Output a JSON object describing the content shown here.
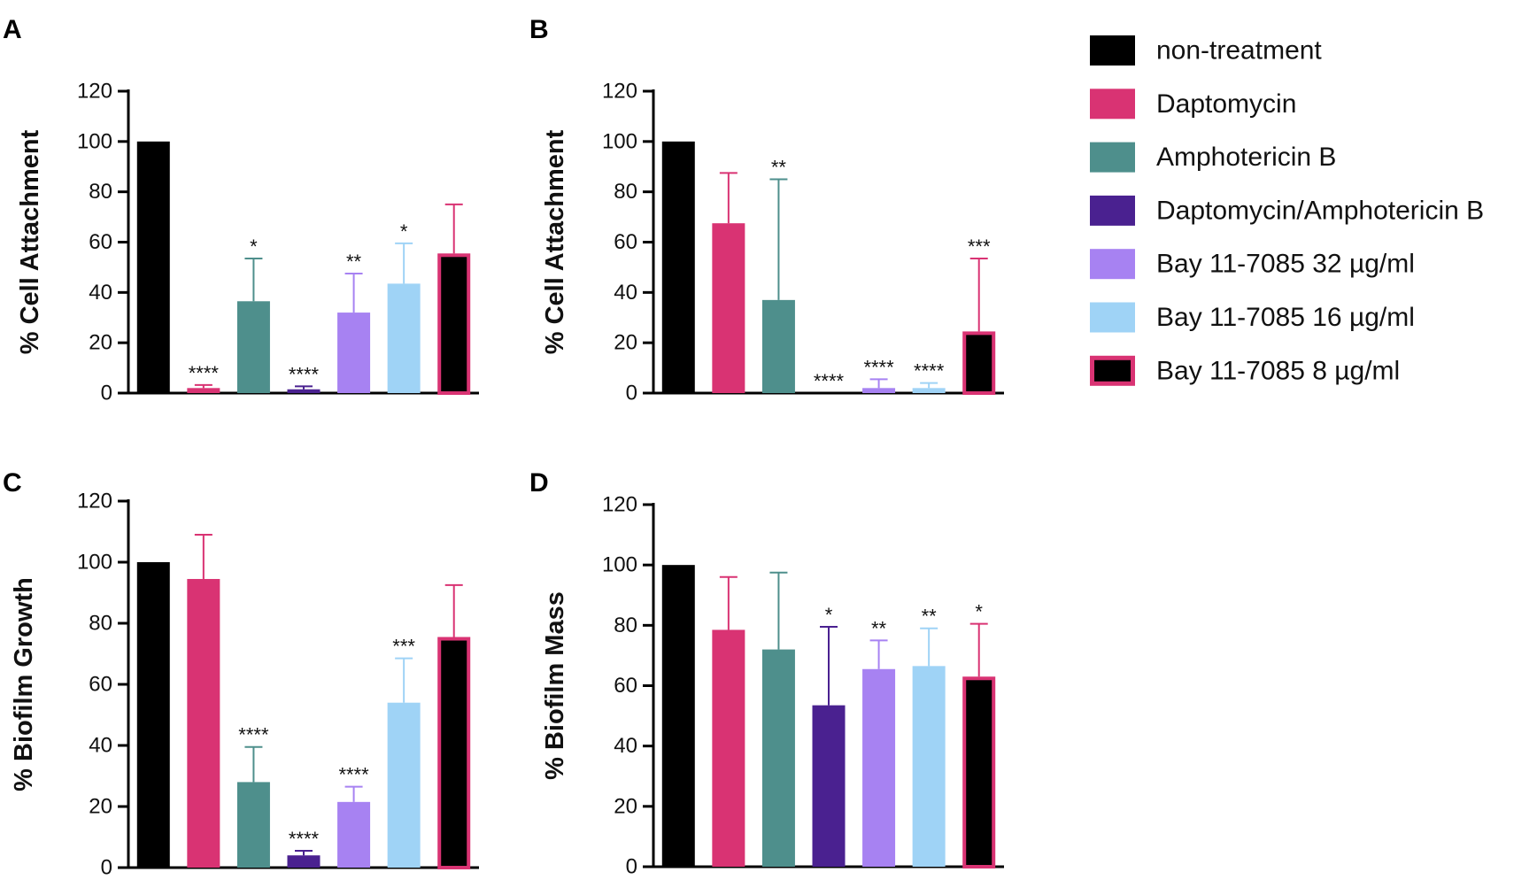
{
  "legend": [
    {
      "label": "non-treatment",
      "key": "nt",
      "icon": "legend-swatch-black"
    },
    {
      "label": "Daptomycin",
      "key": "dap",
      "icon": "legend-swatch-pink"
    },
    {
      "label": "Amphotericin B",
      "key": "amb",
      "icon": "legend-swatch-teal"
    },
    {
      "label": "Daptomycin/Amphotericin B",
      "key": "combo",
      "icon": "legend-swatch-indigo"
    },
    {
      "label": "Bay 11-7085 32 µg/ml",
      "key": "bay32",
      "icon": "legend-swatch-lavender"
    },
    {
      "label": "Bay 11-7085 16 µg/ml",
      "key": "bay16",
      "icon": "legend-swatch-lightblue"
    },
    {
      "label": "Bay 11-7085 8 µg/ml",
      "key": "bay8",
      "icon": "legend-swatch-black-pink-border"
    }
  ],
  "colors": {
    "nt": "#000000",
    "dap": "#d93373",
    "amb": "#4e8f8c",
    "combo": "#4a2190",
    "bay32": "#a782f2",
    "bay16": "#9fd3f6",
    "bay8_fill": "#000000",
    "bay8_border": "#d93373"
  },
  "chart_data": [
    {
      "panel": "A",
      "type": "bar",
      "ylabel": "% Cell Attachment",
      "ylim": [
        0,
        120
      ],
      "yticks": [
        0,
        20,
        40,
        60,
        80,
        100,
        120
      ],
      "categories": [
        "non-treatment",
        "Daptomycin",
        "Amphotericin B",
        "Daptomycin/Amphotericin B",
        "Bay 11-7085 32 µg/ml",
        "Bay 11-7085 16 µg/ml",
        "Bay 11-7085 8 µg/ml"
      ],
      "values": [
        100,
        2,
        36.5,
        1.5,
        32,
        43.5,
        55.5
      ],
      "errors": [
        0,
        1.2,
        17,
        1.2,
        15.5,
        16,
        19.5
      ],
      "significance": [
        "",
        "****",
        "*",
        "****",
        "**",
        "*",
        ""
      ]
    },
    {
      "panel": "B",
      "type": "bar",
      "ylabel": "% Cell Attachment",
      "ylim": [
        0,
        120
      ],
      "yticks": [
        0,
        20,
        40,
        60,
        80,
        100,
        120
      ],
      "categories": [
        "non-treatment",
        "Daptomycin",
        "Amphotericin B",
        "Daptomycin/Amphotericin B",
        "Bay 11-7085 32 µg/ml",
        "Bay 11-7085 16 µg/ml",
        "Bay 11-7085 8 µg/ml"
      ],
      "values": [
        100,
        67.5,
        37,
        0,
        2,
        2,
        24.5
      ],
      "errors": [
        0,
        20,
        48,
        0,
        3.5,
        2,
        29
      ],
      "significance": [
        "",
        "",
        "**",
        "****",
        "****",
        "****",
        "***"
      ]
    },
    {
      "panel": "C",
      "type": "bar",
      "ylabel": "% Biofilm Growth",
      "ylim": [
        0,
        120
      ],
      "yticks": [
        0,
        20,
        40,
        60,
        80,
        100,
        120
      ],
      "categories": [
        "non-treatment",
        "Daptomycin",
        "Amphotericin B",
        "Daptomycin/Amphotericin B",
        "Bay 11-7085 32 µg/ml",
        "Bay 11-7085 16 µg/ml",
        "Bay 11-7085 8 µg/ml"
      ],
      "values": [
        100,
        94.5,
        28,
        4,
        21.5,
        54,
        75.5
      ],
      "errors": [
        0,
        14.5,
        11.5,
        1.5,
        5,
        14.5,
        17
      ],
      "significance": [
        "",
        "",
        "****",
        "****",
        "****",
        "***",
        ""
      ]
    },
    {
      "panel": "D",
      "type": "bar",
      "ylabel": "% Biofilm Mass",
      "ylim": [
        0,
        120
      ],
      "yticks": [
        0,
        20,
        40,
        60,
        80,
        100,
        120
      ],
      "categories": [
        "non-treatment",
        "Daptomycin",
        "Amphotericin B",
        "Daptomycin/Amphotericin B",
        "Bay 11-7085 32 µg/ml",
        "Bay 11-7085 16 µg/ml",
        "Bay 11-7085 8 µg/ml"
      ],
      "values": [
        100,
        78.5,
        72,
        53.5,
        65.5,
        66.5,
        63
      ],
      "errors": [
        0,
        17.5,
        25.5,
        26,
        9.5,
        12.5,
        17.5
      ],
      "significance": [
        "",
        "",
        "",
        "*",
        "**",
        "**",
        "*"
      ]
    }
  ]
}
